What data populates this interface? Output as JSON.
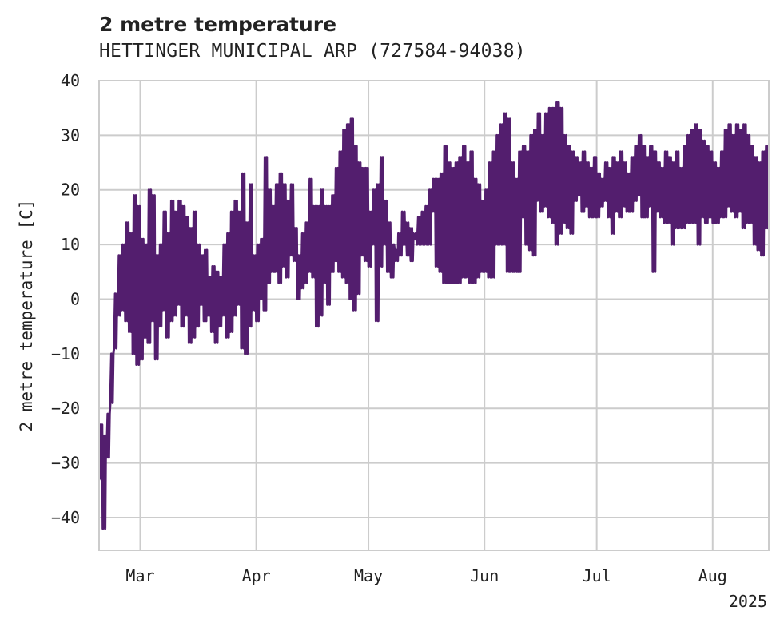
{
  "chart_data": {
    "type": "line",
    "title": "2 metre temperature",
    "subtitle": "HETTINGER MUNICIPAL ARP (727584-94038)",
    "ylabel": "2 metre temperature [C]",
    "xlabel": "",
    "year_label": "2025",
    "ylim": [
      -46,
      40
    ],
    "xlim": [
      "2025-02-18",
      "2025-08-16"
    ],
    "yticks": [
      40,
      30,
      20,
      10,
      0,
      -10,
      -20,
      -30,
      -40
    ],
    "ytick_labels": [
      "40",
      "30",
      "20",
      "10",
      "0",
      "−10",
      "−20",
      "−30",
      "−40"
    ],
    "xticks": [
      "2025-03-01",
      "2025-04-01",
      "2025-05-01",
      "2025-06-01",
      "2025-07-01",
      "2025-08-01"
    ],
    "xtick_labels": [
      "Mar",
      "Apr",
      "May",
      "Jun",
      "Jul",
      "Aug"
    ],
    "grid": true,
    "line_color": "#531e6e",
    "series": [
      {
        "x": [
          "2025-02-18",
          "2025-02-19",
          "2025-02-20",
          "2025-02-21",
          "2025-02-22",
          "2025-02-23",
          "2025-02-24",
          "2025-02-25",
          "2025-02-26",
          "2025-02-27",
          "2025-02-28",
          "2025-03-01",
          "2025-03-02",
          "2025-03-03",
          "2025-03-04",
          "2025-03-05",
          "2025-03-06",
          "2025-03-07",
          "2025-03-08",
          "2025-03-09",
          "2025-03-10",
          "2025-03-11",
          "2025-03-12",
          "2025-03-13",
          "2025-03-14",
          "2025-03-15",
          "2025-03-16",
          "2025-03-17",
          "2025-03-18",
          "2025-03-19",
          "2025-03-20",
          "2025-03-21",
          "2025-03-22",
          "2025-03-23",
          "2025-03-24",
          "2025-03-25",
          "2025-03-26",
          "2025-03-27",
          "2025-03-28",
          "2025-03-29",
          "2025-03-30",
          "2025-03-31",
          "2025-04-01",
          "2025-04-02",
          "2025-04-03",
          "2025-04-04",
          "2025-04-05",
          "2025-04-06",
          "2025-04-07",
          "2025-04-08",
          "2025-04-09",
          "2025-04-10",
          "2025-04-11",
          "2025-04-12",
          "2025-04-13",
          "2025-04-14",
          "2025-04-15",
          "2025-04-16",
          "2025-04-17",
          "2025-04-18",
          "2025-04-19",
          "2025-04-20",
          "2025-04-21",
          "2025-04-22",
          "2025-04-23",
          "2025-04-24",
          "2025-04-25",
          "2025-04-26",
          "2025-04-27",
          "2025-04-28",
          "2025-04-29",
          "2025-04-30",
          "2025-05-01",
          "2025-05-02",
          "2025-05-03",
          "2025-05-04",
          "2025-05-05",
          "2025-05-06",
          "2025-05-07",
          "2025-05-08",
          "2025-05-09",
          "2025-05-10",
          "2025-05-11",
          "2025-05-12",
          "2025-05-13",
          "2025-05-14",
          "2025-05-15",
          "2025-05-16",
          "2025-05-17",
          "2025-05-18",
          "2025-05-19",
          "2025-05-20",
          "2025-05-21",
          "2025-05-22",
          "2025-05-23",
          "2025-05-24",
          "2025-05-25",
          "2025-05-26",
          "2025-05-27",
          "2025-05-28",
          "2025-05-29",
          "2025-05-30",
          "2025-05-31",
          "2025-06-01",
          "2025-06-02",
          "2025-06-03",
          "2025-06-04",
          "2025-06-05",
          "2025-06-06",
          "2025-06-07",
          "2025-06-08",
          "2025-06-09",
          "2025-06-10",
          "2025-06-11",
          "2025-06-12",
          "2025-06-13",
          "2025-06-14",
          "2025-06-15",
          "2025-06-16",
          "2025-06-17",
          "2025-06-18",
          "2025-06-19",
          "2025-06-20",
          "2025-06-21",
          "2025-06-22",
          "2025-06-23",
          "2025-06-24",
          "2025-06-25",
          "2025-06-26",
          "2025-06-27",
          "2025-06-28",
          "2025-06-29",
          "2025-06-30",
          "2025-07-01",
          "2025-07-02",
          "2025-07-03",
          "2025-07-04",
          "2025-07-05",
          "2025-07-06",
          "2025-07-07",
          "2025-07-08",
          "2025-07-09",
          "2025-07-10",
          "2025-07-11",
          "2025-07-12",
          "2025-07-13",
          "2025-07-14",
          "2025-07-15",
          "2025-07-16",
          "2025-07-17",
          "2025-07-18",
          "2025-07-19",
          "2025-07-20",
          "2025-07-21",
          "2025-07-22",
          "2025-07-23",
          "2025-07-24",
          "2025-07-25",
          "2025-07-26",
          "2025-07-27",
          "2025-07-28",
          "2025-07-29",
          "2025-07-30",
          "2025-07-31",
          "2025-08-01",
          "2025-08-02",
          "2025-08-03",
          "2025-08-04",
          "2025-08-05",
          "2025-08-06",
          "2025-08-07",
          "2025-08-08",
          "2025-08-09",
          "2025-08-10",
          "2025-08-11",
          "2025-08-12",
          "2025-08-13",
          "2025-08-14",
          "2025-08-15",
          "2025-08-16"
        ],
        "min": [
          -33,
          -42,
          -29,
          -19,
          -9,
          -3,
          -2,
          -4,
          -6,
          -10,
          -12,
          -11,
          -7,
          -8,
          -4,
          -11,
          -5,
          -2,
          -7,
          -4,
          -3,
          -1,
          -5,
          -3,
          -8,
          -7,
          -5,
          -1,
          -4,
          -3,
          -6,
          -8,
          -5,
          -3,
          -7,
          -6,
          -3,
          -1,
          -9,
          -10,
          -5,
          -2,
          -4,
          0,
          -2,
          3,
          5,
          5,
          3,
          6,
          4,
          8,
          7,
          0,
          2,
          3,
          5,
          4,
          -5,
          -3,
          3,
          -1,
          5,
          7,
          5,
          4,
          3,
          0,
          -2,
          1,
          8,
          7,
          6,
          10,
          -4,
          6,
          10,
          5,
          4,
          9,
          12,
          16,
          14,
          13,
          12,
          10,
          10,
          10,
          10,
          16,
          6,
          5,
          3,
          3,
          3,
          3,
          3,
          4,
          4,
          3,
          3,
          4,
          5,
          5,
          4,
          4,
          10,
          10,
          10,
          5,
          5,
          5,
          5,
          15,
          10,
          9,
          8,
          18,
          16,
          17,
          15,
          14,
          10,
          12,
          14,
          13,
          12,
          18,
          19,
          16,
          17,
          15,
          15,
          15,
          17,
          18,
          15,
          12,
          16,
          15,
          17,
          16,
          16,
          18,
          19,
          15,
          15,
          17,
          5,
          16,
          15,
          14,
          14,
          10,
          13,
          13,
          13,
          14,
          14,
          14,
          10,
          15,
          14,
          15,
          14,
          14,
          15,
          15,
          17,
          16,
          15,
          16,
          13,
          14,
          14,
          10,
          9,
          8,
          13,
          13,
          16
        ],
        "max": [
          -23,
          -25,
          -21,
          -10,
          1,
          8,
          10,
          14,
          12,
          19,
          17,
          11,
          10,
          20,
          19,
          8,
          10,
          16,
          12,
          18,
          16,
          18,
          17,
          15,
          13,
          16,
          10,
          8,
          9,
          4,
          6,
          5,
          4,
          10,
          12,
          16,
          18,
          16,
          23,
          14,
          21,
          8,
          10,
          11,
          26,
          20,
          17,
          21,
          23,
          21,
          18,
          21,
          13,
          8,
          12,
          14,
          22,
          17,
          17,
          20,
          17,
          17,
          19,
          24,
          27,
          31,
          32,
          33,
          28,
          25,
          24,
          24,
          16,
          20,
          21,
          26,
          18,
          14,
          10,
          7,
          8,
          10,
          8,
          7,
          11,
          15,
          16,
          17,
          20,
          22,
          22,
          23,
          28,
          25,
          24,
          25,
          26,
          28,
          25,
          27,
          22,
          21,
          18,
          20,
          25,
          27,
          30,
          32,
          34,
          33,
          25,
          22,
          27,
          28,
          27,
          30,
          31,
          34,
          30,
          34,
          35,
          35,
          36,
          35,
          30,
          28,
          27,
          26,
          25,
          27,
          25,
          24,
          26,
          23,
          22,
          25,
          24,
          26,
          25,
          27,
          25,
          23,
          26,
          28,
          30,
          28,
          26,
          28,
          27,
          25,
          24,
          27,
          26,
          25,
          27,
          24,
          28,
          30,
          31,
          32,
          31,
          29,
          28,
          27,
          25,
          24,
          27,
          31,
          32,
          30,
          32,
          31,
          32,
          30,
          28,
          26,
          25,
          27,
          28,
          31,
          32,
          31
        ]
      }
    ]
  }
}
